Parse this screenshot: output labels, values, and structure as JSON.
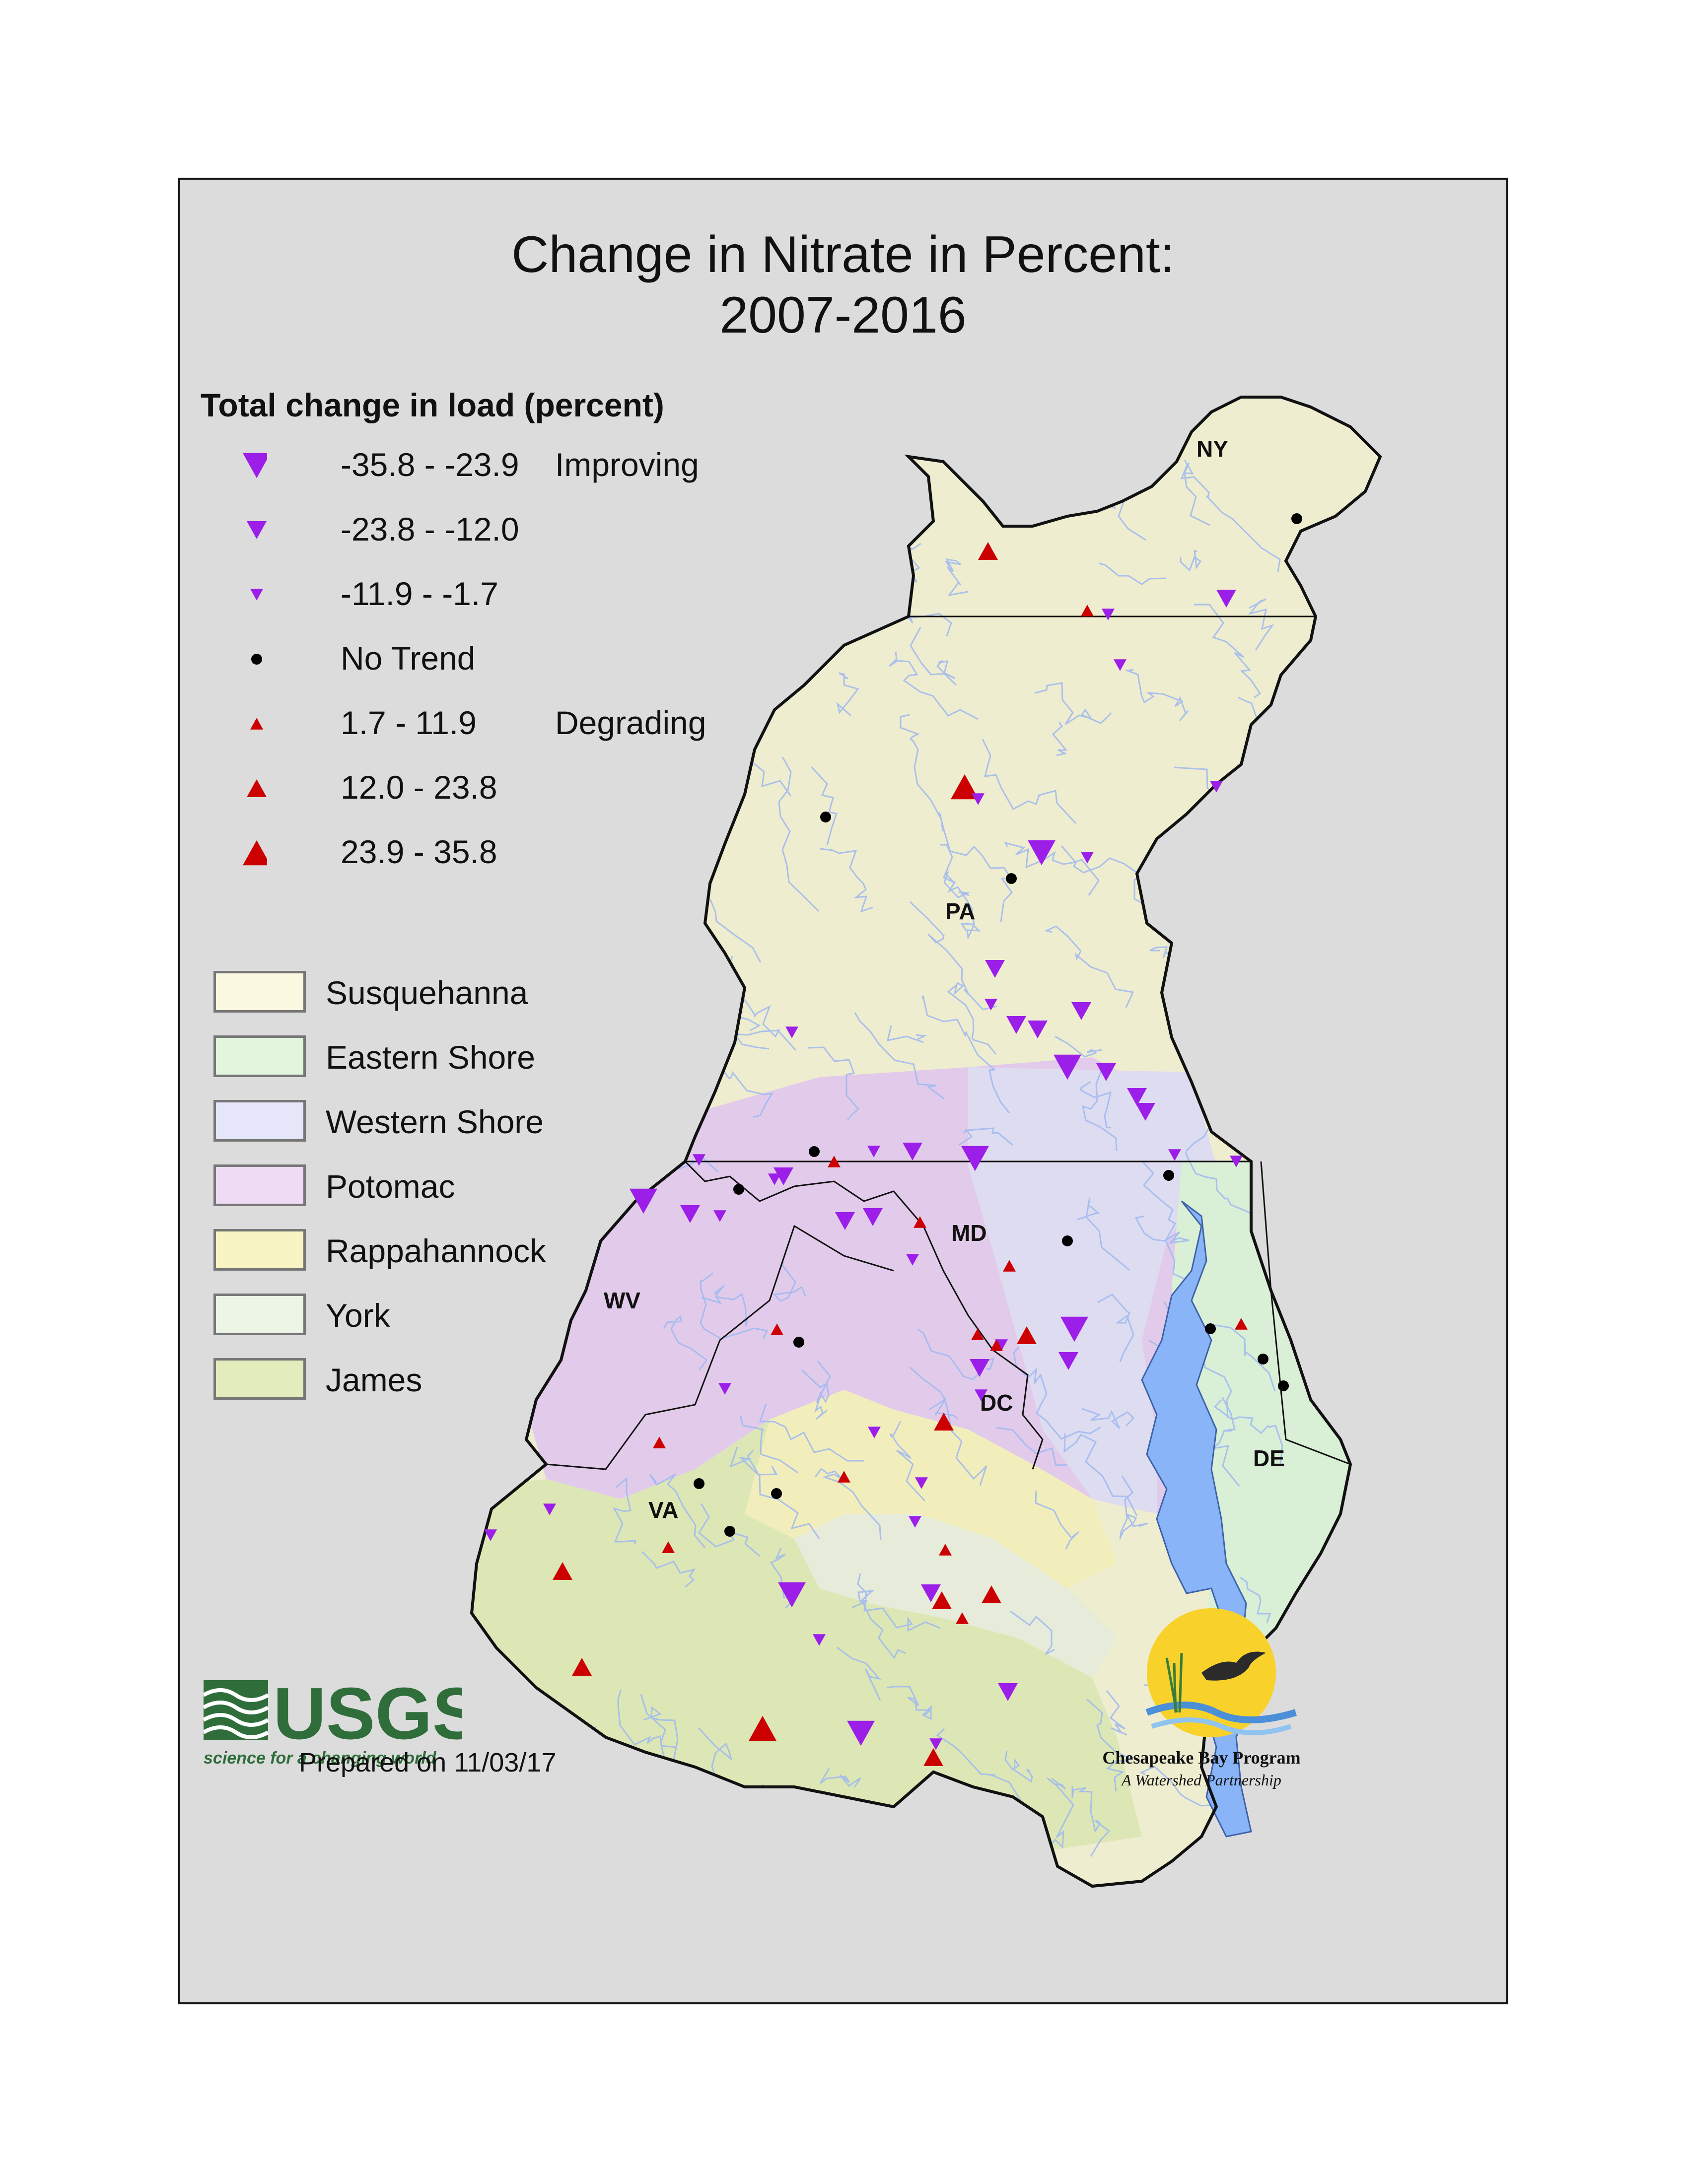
{
  "title": {
    "line1": "Change in Nitrate in Percent:",
    "line2": "2007-2016"
  },
  "legend": {
    "heading": "Total change in load (percent)",
    "symbols": [
      {
        "shape": "triangle-down",
        "size": "large",
        "color": "#9b1fe8",
        "label": "-35.8 - -23.9",
        "qualifier": "Improving"
      },
      {
        "shape": "triangle-down",
        "size": "medium",
        "color": "#9b1fe8",
        "label": "-23.8 - -12.0",
        "qualifier": ""
      },
      {
        "shape": "triangle-down",
        "size": "small",
        "color": "#9b1fe8",
        "label": "-11.9 - -1.7",
        "qualifier": ""
      },
      {
        "shape": "dot",
        "size": "small",
        "color": "#000000",
        "label": "No Trend",
        "qualifier": ""
      },
      {
        "shape": "triangle-up",
        "size": "small",
        "color": "#cc0000",
        "label": "1.7 - 11.9",
        "qualifier": "Degrading"
      },
      {
        "shape": "triangle-up",
        "size": "medium",
        "color": "#cc0000",
        "label": "12.0 - 23.8",
        "qualifier": ""
      },
      {
        "shape": "triangle-up",
        "size": "large",
        "color": "#cc0000",
        "label": "23.9 - 35.8",
        "qualifier": ""
      }
    ],
    "regions": [
      {
        "label": "Susquehanna",
        "color": "#fbf8e2"
      },
      {
        "label": "Eastern Shore",
        "color": "#e2f5dd"
      },
      {
        "label": "Western Shore",
        "color": "#e6e6fa"
      },
      {
        "label": "Potomac",
        "color": "#f0dbf5"
      },
      {
        "label": "Rappahannock",
        "color": "#f8f4c4"
      },
      {
        "label": "York",
        "color": "#edf5e6"
      },
      {
        "label": "James",
        "color": "#e3ecbd"
      }
    ]
  },
  "map": {
    "state_labels": [
      "NY",
      "PA",
      "MD",
      "WV",
      "DC",
      "VA",
      "DE"
    ],
    "colors": {
      "water": "#8ab4f8",
      "river": "#9fb9f0",
      "boundary": "#111111"
    }
  },
  "footer": {
    "usgs_wordmark": "USGS",
    "usgs_tagline": "science for a changing world",
    "prepared": "Prepared on 11/03/17",
    "cbp_name": "Chesapeake Bay Program",
    "cbp_tagline": "A Watershed Partnership"
  }
}
